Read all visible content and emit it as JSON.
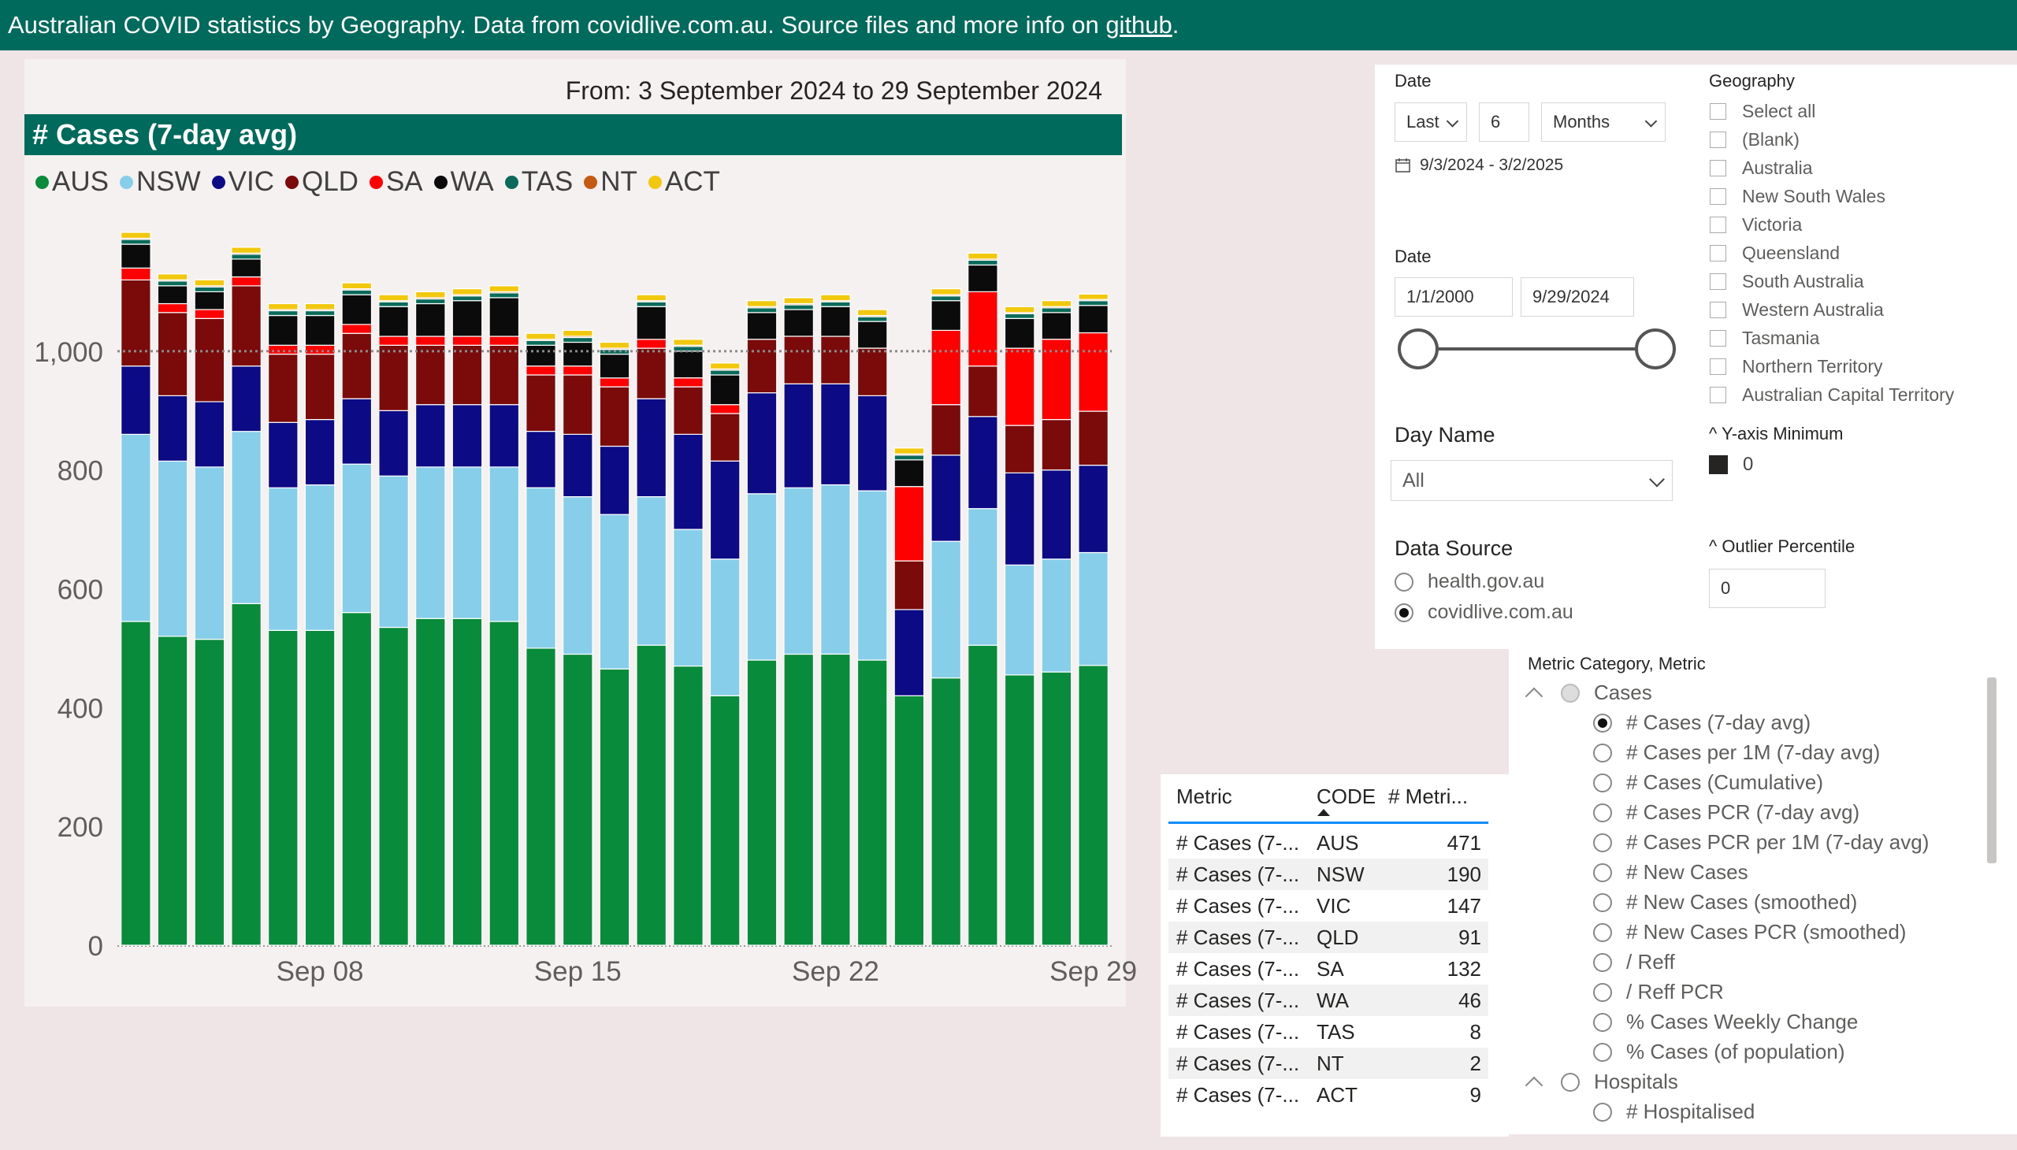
{
  "header": {
    "text_before_link": "Australian COVID statistics by Geography. Data from covidlive.com.au. Source files and more info on ",
    "link_text": "github",
    "text_after_link": "."
  },
  "chart_panel": {
    "date_range_text": "From: 3 September 2024 to 29 September 2024",
    "title": "# Cases (7-day avg)"
  },
  "chart_data": {
    "type": "bar",
    "stacked": true,
    "title": "# Cases (7-day avg)",
    "xlabel": "",
    "ylabel": "",
    "ylim": [
      0,
      1200
    ],
    "yticks": [
      0,
      200,
      400,
      600,
      800,
      1000
    ],
    "ytick_labels": [
      "0",
      "200",
      "400",
      "600",
      "800",
      "1,000"
    ],
    "reference_line": 1000,
    "categories": [
      "Sep 03",
      "Sep 04",
      "Sep 05",
      "Sep 06",
      "Sep 07",
      "Sep 08",
      "Sep 09",
      "Sep 10",
      "Sep 11",
      "Sep 12",
      "Sep 13",
      "Sep 14",
      "Sep 15",
      "Sep 16",
      "Sep 17",
      "Sep 18",
      "Sep 19",
      "Sep 20",
      "Sep 21",
      "Sep 22",
      "Sep 23",
      "Sep 24",
      "Sep 25",
      "Sep 26",
      "Sep 27",
      "Sep 28",
      "Sep 29"
    ],
    "xtick_labels": [
      {
        "index": 5,
        "label": "Sep 08"
      },
      {
        "index": 12,
        "label": "Sep 15"
      },
      {
        "index": 19,
        "label": "Sep 22"
      },
      {
        "index": 26,
        "label": "Sep 29"
      }
    ],
    "series": [
      {
        "name": "AUS",
        "color": "#098b3c",
        "values": [
          545,
          520,
          515,
          575,
          530,
          530,
          560,
          535,
          550,
          550,
          545,
          500,
          490,
          465,
          505,
          470,
          420,
          480,
          490,
          490,
          480,
          420,
          450,
          505,
          455,
          460,
          471
        ]
      },
      {
        "name": "NSW",
        "color": "#87ceeb",
        "values": [
          315,
          295,
          290,
          290,
          240,
          245,
          250,
          255,
          255,
          255,
          260,
          270,
          265,
          260,
          250,
          230,
          230,
          280,
          280,
          285,
          285,
          0,
          230,
          230,
          185,
          190,
          190
        ]
      },
      {
        "name": "VIC",
        "color": "#0d0a86",
        "values": [
          115,
          110,
          110,
          110,
          110,
          110,
          110,
          110,
          105,
          105,
          105,
          95,
          105,
          115,
          165,
          160,
          165,
          170,
          175,
          170,
          160,
          145,
          145,
          155,
          155,
          150,
          147
        ]
      },
      {
        "name": "QLD",
        "color": "#7b0a0b",
        "values": [
          145,
          140,
          140,
          135,
          115,
          110,
          110,
          110,
          100,
          100,
          100,
          95,
          100,
          100,
          85,
          80,
          80,
          90,
          80,
          80,
          80,
          82,
          85,
          85,
          80,
          85,
          91
        ]
      },
      {
        "name": "SA",
        "color": "#ff0000",
        "values": [
          20,
          15,
          15,
          15,
          15,
          15,
          15,
          15,
          15,
          15,
          15,
          15,
          15,
          15,
          15,
          15,
          15,
          0,
          0,
          0,
          0,
          125,
          125,
          125,
          130,
          135,
          132
        ]
      },
      {
        "name": "WA",
        "color": "#0b0b0b",
        "values": [
          40,
          30,
          30,
          30,
          50,
          50,
          50,
          50,
          55,
          60,
          65,
          35,
          40,
          40,
          55,
          45,
          50,
          45,
          45,
          50,
          45,
          45,
          50,
          45,
          50,
          45,
          46
        ]
      },
      {
        "name": "TAS",
        "color": "#0a6b5a",
        "values": [
          8,
          8,
          8,
          8,
          8,
          8,
          8,
          8,
          8,
          8,
          8,
          8,
          8,
          8,
          8,
          8,
          8,
          8,
          8,
          8,
          8,
          8,
          8,
          8,
          8,
          8,
          8
        ]
      },
      {
        "name": "NT",
        "color": "#c55a11",
        "values": [
          2,
          2,
          2,
          2,
          2,
          2,
          2,
          2,
          2,
          2,
          2,
          2,
          2,
          2,
          2,
          2,
          2,
          2,
          2,
          2,
          2,
          2,
          2,
          2,
          2,
          2,
          2
        ]
      },
      {
        "name": "ACT",
        "color": "#f2c80f",
        "values": [
          10,
          10,
          10,
          10,
          10,
          10,
          10,
          10,
          10,
          10,
          10,
          10,
          10,
          10,
          10,
          10,
          10,
          10,
          10,
          10,
          10,
          10,
          10,
          10,
          10,
          10,
          9
        ]
      }
    ]
  },
  "filters": {
    "date_label": "Date",
    "relative_mode": "Last",
    "relative_count": "6",
    "relative_unit": "Months",
    "relative_range_text": "9/3/2024 - 3/2/2025",
    "date2_label": "Date",
    "date_from": "1/1/2000",
    "date_to": "9/29/2024",
    "dayname_label": "Day Name",
    "dayname_value": "All",
    "datasource_label": "Data Source",
    "datasource_options": [
      {
        "label": "health.gov.au",
        "selected": false
      },
      {
        "label": "covidlive.com.au",
        "selected": true
      }
    ],
    "geography_label": "Geography",
    "geography_options": [
      "Select all",
      "(Blank)",
      "Australia",
      "New South Wales",
      "Victoria",
      "Queensland",
      "South Australia",
      "Western Australia",
      "Tasmania",
      "Northern Territory",
      "Australian Capital Territory"
    ],
    "y_axis_min_label": "^ Y-axis Minimum",
    "y_axis_min_value": "0",
    "outlier_label": "^ Outlier Percentile",
    "outlier_value": "0"
  },
  "table": {
    "headers": [
      "Metric",
      "CODE",
      "# Metri..."
    ],
    "rows": [
      {
        "metric": "# Cases (7-...",
        "code": "AUS",
        "value": "471"
      },
      {
        "metric": "# Cases (7-...",
        "code": "NSW",
        "value": "190"
      },
      {
        "metric": "# Cases (7-...",
        "code": "VIC",
        "value": "147"
      },
      {
        "metric": "# Cases (7-...",
        "code": "QLD",
        "value": "91"
      },
      {
        "metric": "# Cases (7-...",
        "code": "SA",
        "value": "132"
      },
      {
        "metric": "# Cases (7-...",
        "code": "WA",
        "value": "46"
      },
      {
        "metric": "# Cases (7-...",
        "code": "TAS",
        "value": "8"
      },
      {
        "metric": "# Cases (7-...",
        "code": "NT",
        "value": "2"
      },
      {
        "metric": "# Cases (7-...",
        "code": "ACT",
        "value": "9"
      }
    ]
  },
  "metric_slicer": {
    "title": "Metric Category, Metric",
    "groups": [
      {
        "label": "Cases",
        "items": [
          {
            "label": "# Cases (7-day avg)",
            "selected": true
          },
          {
            "label": "# Cases per 1M (7-day avg)",
            "selected": false
          },
          {
            "label": "# Cases (Cumulative)",
            "selected": false
          },
          {
            "label": "# Cases PCR (7-day avg)",
            "selected": false
          },
          {
            "label": "# Cases PCR per 1M (7-day avg)",
            "selected": false
          },
          {
            "label": "# New Cases",
            "selected": false
          },
          {
            "label": "# New Cases (smoothed)",
            "selected": false
          },
          {
            "label": "# New Cases PCR (smoothed)",
            "selected": false
          },
          {
            "label": "/ Reff",
            "selected": false
          },
          {
            "label": "/ Reff PCR",
            "selected": false
          },
          {
            "label": "% Cases Weekly Change",
            "selected": false
          },
          {
            "label": "% Cases (of population)",
            "selected": false
          }
        ]
      },
      {
        "label": "Hospitals",
        "items": [
          {
            "label": "# Hospitalised",
            "selected": false
          }
        ]
      }
    ]
  }
}
